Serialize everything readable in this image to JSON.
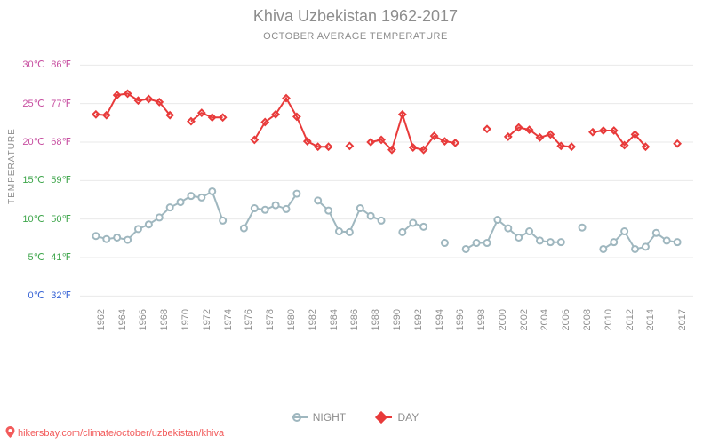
{
  "title": "Khiva Uzbekistan 1962-2017",
  "subtitle": "OCTOBER AVERAGE TEMPERATURE",
  "ylabel": "TEMPERATURE",
  "footer": "hikersbay.com/climate/october/uzbekistan/khiva",
  "legend": {
    "night": "NIGHT",
    "day": "DAY"
  },
  "chart": {
    "type": "line",
    "background_color": "#ffffff",
    "grid_color": "#e9e9e9",
    "marker_radius": 3.5,
    "line_width": 2,
    "ylim": [
      -1,
      32
    ],
    "yticks": [
      {
        "c": "0℃",
        "f": "32℉",
        "v": 0,
        "color": "#3a66d6"
      },
      {
        "c": "5℃",
        "f": "41℉",
        "v": 5,
        "color": "#3fa64c"
      },
      {
        "c": "10℃",
        "f": "50℉",
        "v": 10,
        "color": "#3fa64c"
      },
      {
        "c": "15℃",
        "f": "59℉",
        "v": 15,
        "color": "#3fa64c"
      },
      {
        "c": "20℃",
        "f": "68℉",
        "v": 20,
        "color": "#c74ea0"
      },
      {
        "c": "25℃",
        "f": "77℉",
        "v": 25,
        "color": "#c74ea0"
      },
      {
        "c": "30℃",
        "f": "86℉",
        "v": 30,
        "color": "#c74ea0"
      }
    ],
    "xticks": [
      1962,
      1964,
      1966,
      1968,
      1970,
      1972,
      1974,
      1976,
      1978,
      1980,
      1982,
      1984,
      1986,
      1988,
      1990,
      1992,
      1994,
      1996,
      1998,
      2000,
      2002,
      2004,
      2006,
      2008,
      2010,
      2012,
      2014,
      2017
    ],
    "xlim": [
      1961,
      2018
    ],
    "series": {
      "day": {
        "color": "#e83a3a",
        "marker": "diamond",
        "segments": [
          [
            [
              1962,
              23.6
            ],
            [
              1963,
              23.5
            ],
            [
              1964,
              26.1
            ],
            [
              1965,
              26.3
            ],
            [
              1966,
              25.4
            ],
            [
              1967,
              25.6
            ],
            [
              1968,
              25.2
            ],
            [
              1969,
              23.5
            ]
          ],
          [
            [
              1971,
              22.7
            ],
            [
              1972,
              23.8
            ],
            [
              1973,
              23.2
            ],
            [
              1974,
              23.2
            ]
          ],
          [
            [
              1977,
              20.3
            ],
            [
              1978,
              22.6
            ],
            [
              1979,
              23.6
            ],
            [
              1980,
              25.7
            ],
            [
              1981,
              23.3
            ],
            [
              1982,
              20.1
            ],
            [
              1983,
              19.4
            ],
            [
              1984,
              19.4
            ]
          ],
          [
            [
              1986,
              19.5
            ]
          ],
          [
            [
              1988,
              20.0
            ],
            [
              1989,
              20.3
            ],
            [
              1990,
              19.0
            ],
            [
              1991,
              23.6
            ],
            [
              1992,
              19.3
            ],
            [
              1993,
              19.0
            ],
            [
              1994,
              20.8
            ],
            [
              1995,
              20.1
            ],
            [
              1996,
              19.9
            ]
          ],
          [
            [
              1999,
              21.7
            ]
          ],
          [
            [
              2001,
              20.7
            ],
            [
              2002,
              21.9
            ],
            [
              2003,
              21.6
            ],
            [
              2004,
              20.6
            ],
            [
              2005,
              21.0
            ],
            [
              2006,
              19.5
            ],
            [
              2007,
              19.4
            ]
          ],
          [
            [
              2009,
              21.3
            ],
            [
              2010,
              21.5
            ],
            [
              2011,
              21.5
            ],
            [
              2012,
              19.6
            ],
            [
              2013,
              21.0
            ],
            [
              2014,
              19.4
            ]
          ],
          [
            [
              2017,
              19.8
            ]
          ]
        ]
      },
      "night": {
        "color": "#9fb7bf",
        "marker": "circle",
        "segments": [
          [
            [
              1962,
              7.8
            ],
            [
              1963,
              7.4
            ],
            [
              1964,
              7.6
            ],
            [
              1965,
              7.3
            ],
            [
              1966,
              8.7
            ],
            [
              1967,
              9.3
            ],
            [
              1968,
              10.2
            ],
            [
              1969,
              11.5
            ],
            [
              1970,
              12.2
            ],
            [
              1971,
              13.0
            ],
            [
              1972,
              12.8
            ],
            [
              1973,
              13.6
            ],
            [
              1974,
              9.8
            ]
          ],
          [
            [
              1976,
              8.8
            ],
            [
              1977,
              11.4
            ],
            [
              1978,
              11.2
            ],
            [
              1979,
              11.8
            ],
            [
              1980,
              11.3
            ],
            [
              1981,
              13.3
            ]
          ],
          [
            [
              1983,
              12.4
            ],
            [
              1984,
              11.1
            ],
            [
              1985,
              8.4
            ],
            [
              1986,
              8.3
            ],
            [
              1987,
              11.4
            ],
            [
              1988,
              10.4
            ],
            [
              1989,
              9.8
            ]
          ],
          [
            [
              1991,
              8.3
            ],
            [
              1992,
              9.5
            ],
            [
              1993,
              9.0
            ]
          ],
          [
            [
              1995,
              6.9
            ]
          ],
          [
            [
              1997,
              6.1
            ],
            [
              1998,
              6.9
            ],
            [
              1999,
              6.9
            ],
            [
              2000,
              9.9
            ],
            [
              2001,
              8.8
            ],
            [
              2002,
              7.6
            ],
            [
              2003,
              8.4
            ],
            [
              2004,
              7.2
            ],
            [
              2005,
              7.0
            ],
            [
              2006,
              7.0
            ]
          ],
          [
            [
              2008,
              8.9
            ]
          ],
          [
            [
              2010,
              6.1
            ],
            [
              2011,
              7.0
            ],
            [
              2012,
              8.4
            ],
            [
              2013,
              6.1
            ],
            [
              2014,
              6.4
            ],
            [
              2015,
              8.2
            ],
            [
              2016,
              7.2
            ],
            [
              2017,
              7.0
            ]
          ]
        ]
      }
    }
  }
}
